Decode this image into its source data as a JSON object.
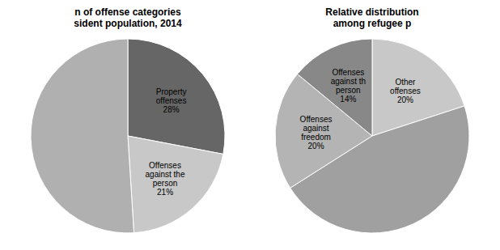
{
  "chart_data": [
    {
      "type": "pie",
      "title": "n of offense categories\nsident population, 2014",
      "categories": [
        "Property\noffenses\n28%",
        "Offenses\nagainst the\nperson\n21%",
        null
      ],
      "values": [
        28,
        21,
        51
      ],
      "colors": [
        "#666666",
        "#c8c8c8",
        "#b0b0b0"
      ]
    },
    {
      "type": "pie",
      "title": "Relative distribution\namong refugee p",
      "categories": [
        "Other\noffenses\n20%",
        null,
        "Offenses\nagainst\nfreedom\n20%",
        "Offenses\nagainst th\nperson\n14%"
      ],
      "values": [
        20,
        46,
        20,
        14
      ],
      "colors": [
        "#c8c8c8",
        "#a0a0a0",
        "#b4b4b4",
        "#888888"
      ]
    }
  ]
}
